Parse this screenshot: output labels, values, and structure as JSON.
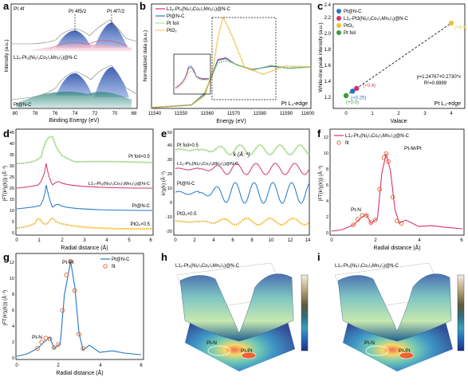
{
  "figure": {
    "panel_labels": [
      "a",
      "b",
      "c",
      "d",
      "e",
      "f",
      "g",
      "h",
      "i"
    ]
  },
  "panels": {
    "a": {
      "corner_label": "Pt 4f",
      "peak_labels": [
        "Pt 4f5/2",
        "Pt 4f7/2"
      ],
      "sample_top": "L1₂-Pt₃(Ni₁/₃Co₁/₃Mn₁/₃)@N-C",
      "sample_bottom": "Pt@N-C",
      "xlabel": "Binding Energy (eV)",
      "ylabel": "Intensity (a.u.)",
      "xticks": [
        "80",
        "78",
        "76",
        "74",
        "72",
        "70",
        "68"
      ]
    },
    "b": {
      "legend": [
        "L1₂-Pt₃(Ni₁/₃Co₁/₃Mn₁/₃)@N-C",
        "Pt@N-C",
        "Pt foil",
        "PtO₂"
      ],
      "edge": "Pt L₃-edge",
      "xlabel": "Energy (eV)",
      "ylabel": "Normalized data (a.u.)",
      "xticks": [
        "11540",
        "11550",
        "11560",
        "11570",
        "11580",
        "11590",
        "11600"
      ]
    },
    "c": {
      "legend": [
        "Pt@N-C",
        "L1₂-Pt3(Ni₁/₃Co₁/₃Mn₁/₃)@N-C",
        "PtO₂",
        "Pt foil"
      ],
      "fit_line": "y=1.24767+0.2730*x",
      "r2": "R²=0.9999",
      "edge": "Pt L₃-edge",
      "xlabel": "Valace",
      "ylabel": "White-line peak intensity (a.u.)",
      "xticks": [
        "0",
        "1",
        "2",
        "3",
        "4"
      ],
      "yticks": [
        "1.2",
        "1.4",
        "1.6",
        "1.8",
        "2.0",
        "2.2",
        "2.4"
      ],
      "point_labels": [
        "(+0.0)",
        "(+0.25)",
        "(+0.4)",
        "(+4.0)"
      ]
    },
    "d": {
      "labels": [
        "Pt foil×0.5",
        "L1₂-Pt₃(Ni₁/₃Co₁/₃Mn₁/₃)@N-C",
        "Pt@N-C",
        "PtO₂×0.5"
      ],
      "xlabel": "Radial distance (Å)",
      "ylabel": "|FT(k²χ(k))| (Å⁻³)",
      "xticks": [
        "0",
        "1",
        "2",
        "3",
        "4",
        "5",
        "6"
      ],
      "yticks": [
        "0",
        "5",
        "10",
        "15",
        "20",
        "25",
        "30",
        "35",
        "40",
        "45"
      ]
    },
    "e": {
      "labels": [
        "Pt foil×0.5",
        "L1₂-Pt₃(Ni₁/₃Co₁/₃Mn₁/₃)@N-C",
        "Pt@N-C",
        "PtO₂×0.5"
      ],
      "xlabel": "k (Å⁻¹)",
      "ylabel": "k²χ(k) (Å⁻²)",
      "xticks": [
        "0",
        "2",
        "4",
        "6",
        "8",
        "10",
        "12",
        "14"
      ],
      "yticks": [
        "-20",
        "-10",
        "0",
        "10",
        "20",
        "30",
        "40",
        "50"
      ]
    },
    "f": {
      "legend": [
        "L1₂-Pt₃(Ni₁/₃Co₁/₃Mn₁/₃)@N-C",
        "fit"
      ],
      "peak_labels": [
        "Pt-N",
        "Pt-M/Pt"
      ],
      "xlabel": "Radial distance (Å)",
      "ylabel": "|FT(k²χ(k))| (Å⁻³)",
      "xticks": [
        "0",
        "2",
        "4",
        "6"
      ],
      "yticks": [
        "0",
        "2",
        "4",
        "6",
        "8",
        "10",
        "12"
      ]
    },
    "g": {
      "legend": [
        "Pt@N-C",
        "fit"
      ],
      "peak_labels": [
        "Pt-N",
        "Pt-Pt"
      ],
      "xlabel": "Radial distance (Å)",
      "ylabel": "|FT(k²χ(k))| (Å⁻³)",
      "xticks": [
        "0",
        "2",
        "4",
        "6"
      ],
      "yticks": [
        "0",
        "2",
        "4",
        "6",
        "8",
        "10",
        "12"
      ]
    },
    "h": {
      "title": "L1₂-Pt₃(Ni₁/₃Co₁/₃Mn₁/₃)@N-C",
      "peak_labels": [
        "Pt-N",
        "Pt-Pt"
      ]
    },
    "i": {
      "title": "L1₂-Pt₃(Ni₁/₃Co₁/₃Mn₁/₃)@N-C",
      "peak_labels": [
        "Pt-N",
        "Pt-Pt"
      ]
    }
  },
  "colors": {
    "L12": "#d6336c",
    "PtNC": "#1f77c8",
    "foil": "#8fcf6b",
    "PtO2": "#f0b428",
    "fit": "#e0602a"
  },
  "chart_data": [
    {
      "type": "line",
      "panel": "b",
      "title": "",
      "xlabel": "Energy (eV)",
      "ylabel": "Normalized data (a.u.)",
      "xlim": [
        11540,
        11600
      ],
      "series": [
        {
          "name": "L1₂-Pt₃(Ni₁/₃Co₁/₃Mn₁/₃)@N-C",
          "x": [
            11540,
            11555,
            11560,
            11563,
            11565,
            11568,
            11572,
            11578,
            11585,
            11592,
            11600
          ],
          "y": [
            0.02,
            0.08,
            0.35,
            0.85,
            1.18,
            1.22,
            1.05,
            0.93,
            1.02,
            0.97,
            1.0
          ]
        },
        {
          "name": "Pt@N-C",
          "x": [
            11540,
            11555,
            11560,
            11563,
            11565,
            11568,
            11572,
            11578,
            11585,
            11592,
            11600
          ],
          "y": [
            0.02,
            0.08,
            0.34,
            0.83,
            1.16,
            1.2,
            1.05,
            0.94,
            1.01,
            0.97,
            1.0
          ]
        },
        {
          "name": "Pt foil",
          "x": [
            11540,
            11555,
            11560,
            11563,
            11565,
            11568,
            11572,
            11578,
            11585,
            11592,
            11600
          ],
          "y": [
            0.02,
            0.09,
            0.38,
            0.82,
            1.1,
            1.15,
            1.06,
            0.92,
            1.04,
            0.96,
            1.0
          ]
        },
        {
          "name": "PtO₂",
          "x": [
            11540,
            11555,
            11560,
            11563,
            11565,
            11567,
            11570,
            11575,
            11582,
            11590,
            11600
          ],
          "y": [
            0.02,
            0.08,
            0.3,
            0.9,
            1.7,
            2.2,
            1.8,
            1.0,
            0.82,
            1.02,
            1.0
          ]
        }
      ]
    },
    {
      "type": "scatter",
      "panel": "c",
      "xlabel": "Valace",
      "ylabel": "White-line peak intensity (a.u.)",
      "xlim": [
        -0.5,
        4.5
      ],
      "ylim": [
        1.15,
        2.45
      ],
      "points": [
        {
          "name": "Pt foil",
          "x": 0.0,
          "y": 1.248,
          "label": "(+0.0)"
        },
        {
          "name": "Pt@N-C",
          "x": 0.25,
          "y": 1.316,
          "label": "(+0.25)"
        },
        {
          "name": "L1₂-Pt3(Ni₁/₃Co₁/₃Mn₁/₃)@N-C",
          "x": 0.4,
          "y": 1.357,
          "label": "(+0.4)"
        },
        {
          "name": "PtO₂",
          "x": 4.0,
          "y": 2.34,
          "label": "(+4.0)"
        }
      ],
      "fit": {
        "intercept": 1.24767,
        "slope": 0.273
      }
    },
    {
      "type": "line",
      "panel": "f",
      "xlabel": "Radial distance (Å)",
      "ylabel": "|FT(k²χ(k))| (Å⁻³)",
      "xlim": [
        0,
        6
      ],
      "ylim": [
        0,
        12.5
      ],
      "series": [
        {
          "name": "L1₂-Pt₃(Ni₁/₃Co₁/₃Mn₁/₃)@N-C",
          "x": [
            0,
            0.5,
            1.0,
            1.4,
            1.6,
            1.8,
            2.1,
            2.3,
            2.5,
            2.7,
            2.9,
            3.1,
            3.4,
            4.0,
            4.6,
            5.2,
            6.0
          ],
          "y": [
            0.2,
            0.4,
            1.0,
            2.0,
            2.3,
            1.2,
            1.8,
            7.5,
            10.0,
            7.8,
            3.0,
            1.2,
            1.6,
            0.8,
            0.9,
            0.7,
            0.5
          ]
        },
        {
          "name": "fit",
          "x": [
            1.0,
            1.2,
            1.4,
            1.6,
            1.8,
            2.0,
            2.2,
            2.4,
            2.5,
            2.6,
            2.8,
            3.0,
            3.2
          ],
          "y": [
            1.0,
            1.7,
            2.2,
            2.2,
            1.3,
            1.6,
            5.5,
            9.5,
            10.0,
            9.0,
            4.5,
            1.5,
            1.2
          ]
        }
      ]
    },
    {
      "type": "line",
      "panel": "g",
      "xlabel": "Radial distance (Å)",
      "ylabel": "|FT(k²χ(k))| (Å⁻³)",
      "xlim": [
        0,
        6
      ],
      "ylim": [
        0,
        12.5
      ],
      "series": [
        {
          "name": "Pt@N-C",
          "x": [
            0,
            0.5,
            1.0,
            1.4,
            1.6,
            1.8,
            2.1,
            2.3,
            2.6,
            2.8,
            3.0,
            3.2,
            3.5,
            4.0,
            4.6,
            5.2,
            6.0
          ],
          "y": [
            0.2,
            0.5,
            1.2,
            2.2,
            2.6,
            1.2,
            1.8,
            8.0,
            12.2,
            9.0,
            3.2,
            1.0,
            1.6,
            0.7,
            0.9,
            0.6,
            0.4
          ]
        },
        {
          "name": "fit",
          "x": [
            1.0,
            1.2,
            1.4,
            1.6,
            1.8,
            2.0,
            2.2,
            2.4,
            2.6,
            2.8,
            3.0,
            3.2
          ],
          "y": [
            1.2,
            2.0,
            2.5,
            2.4,
            1.3,
            1.7,
            6.0,
            10.5,
            12.2,
            8.5,
            3.0,
            1.2
          ]
        }
      ]
    }
  ]
}
